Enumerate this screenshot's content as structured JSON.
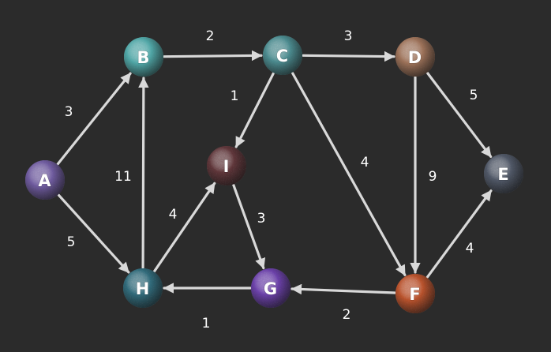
{
  "graph": {
    "nodes": [
      {
        "id": "A",
        "label": "A",
        "color": "#6e5a9e"
      },
      {
        "id": "B",
        "label": "B",
        "color": "#4fa6a6"
      },
      {
        "id": "C",
        "label": "C",
        "color": "#4a8a8e"
      },
      {
        "id": "D",
        "label": "D",
        "color": "#9c7158"
      },
      {
        "id": "E",
        "label": "E",
        "color": "#4f5766"
      },
      {
        "id": "F",
        "label": "F",
        "color": "#b8512a"
      },
      {
        "id": "G",
        "label": "G",
        "color": "#6a3fa8"
      },
      {
        "id": "H",
        "label": "H",
        "color": "#2f6a7a"
      },
      {
        "id": "I",
        "label": "I",
        "color": "#5e3438"
      }
    ],
    "edges": [
      {
        "from": "A",
        "to": "B",
        "weight": "3"
      },
      {
        "from": "A",
        "to": "H",
        "weight": "5"
      },
      {
        "from": "B",
        "to": "C",
        "weight": "2"
      },
      {
        "from": "H",
        "to": "B",
        "weight": "11"
      },
      {
        "from": "C",
        "to": "D",
        "weight": "3"
      },
      {
        "from": "C",
        "to": "I",
        "weight": "1"
      },
      {
        "from": "C",
        "to": "F",
        "weight": "4"
      },
      {
        "from": "D",
        "to": "E",
        "weight": "5"
      },
      {
        "from": "D",
        "to": "F",
        "weight": "9"
      },
      {
        "from": "F",
        "to": "E",
        "weight": "4"
      },
      {
        "from": "H",
        "to": "I",
        "weight": "4"
      },
      {
        "from": "I",
        "to": "G",
        "weight": "3"
      },
      {
        "from": "G",
        "to": "H",
        "weight": "1"
      },
      {
        "from": "F",
        "to": "G",
        "weight": "2"
      }
    ],
    "edge_color": "#d9d9d9",
    "background": "#2b2b2b"
  }
}
